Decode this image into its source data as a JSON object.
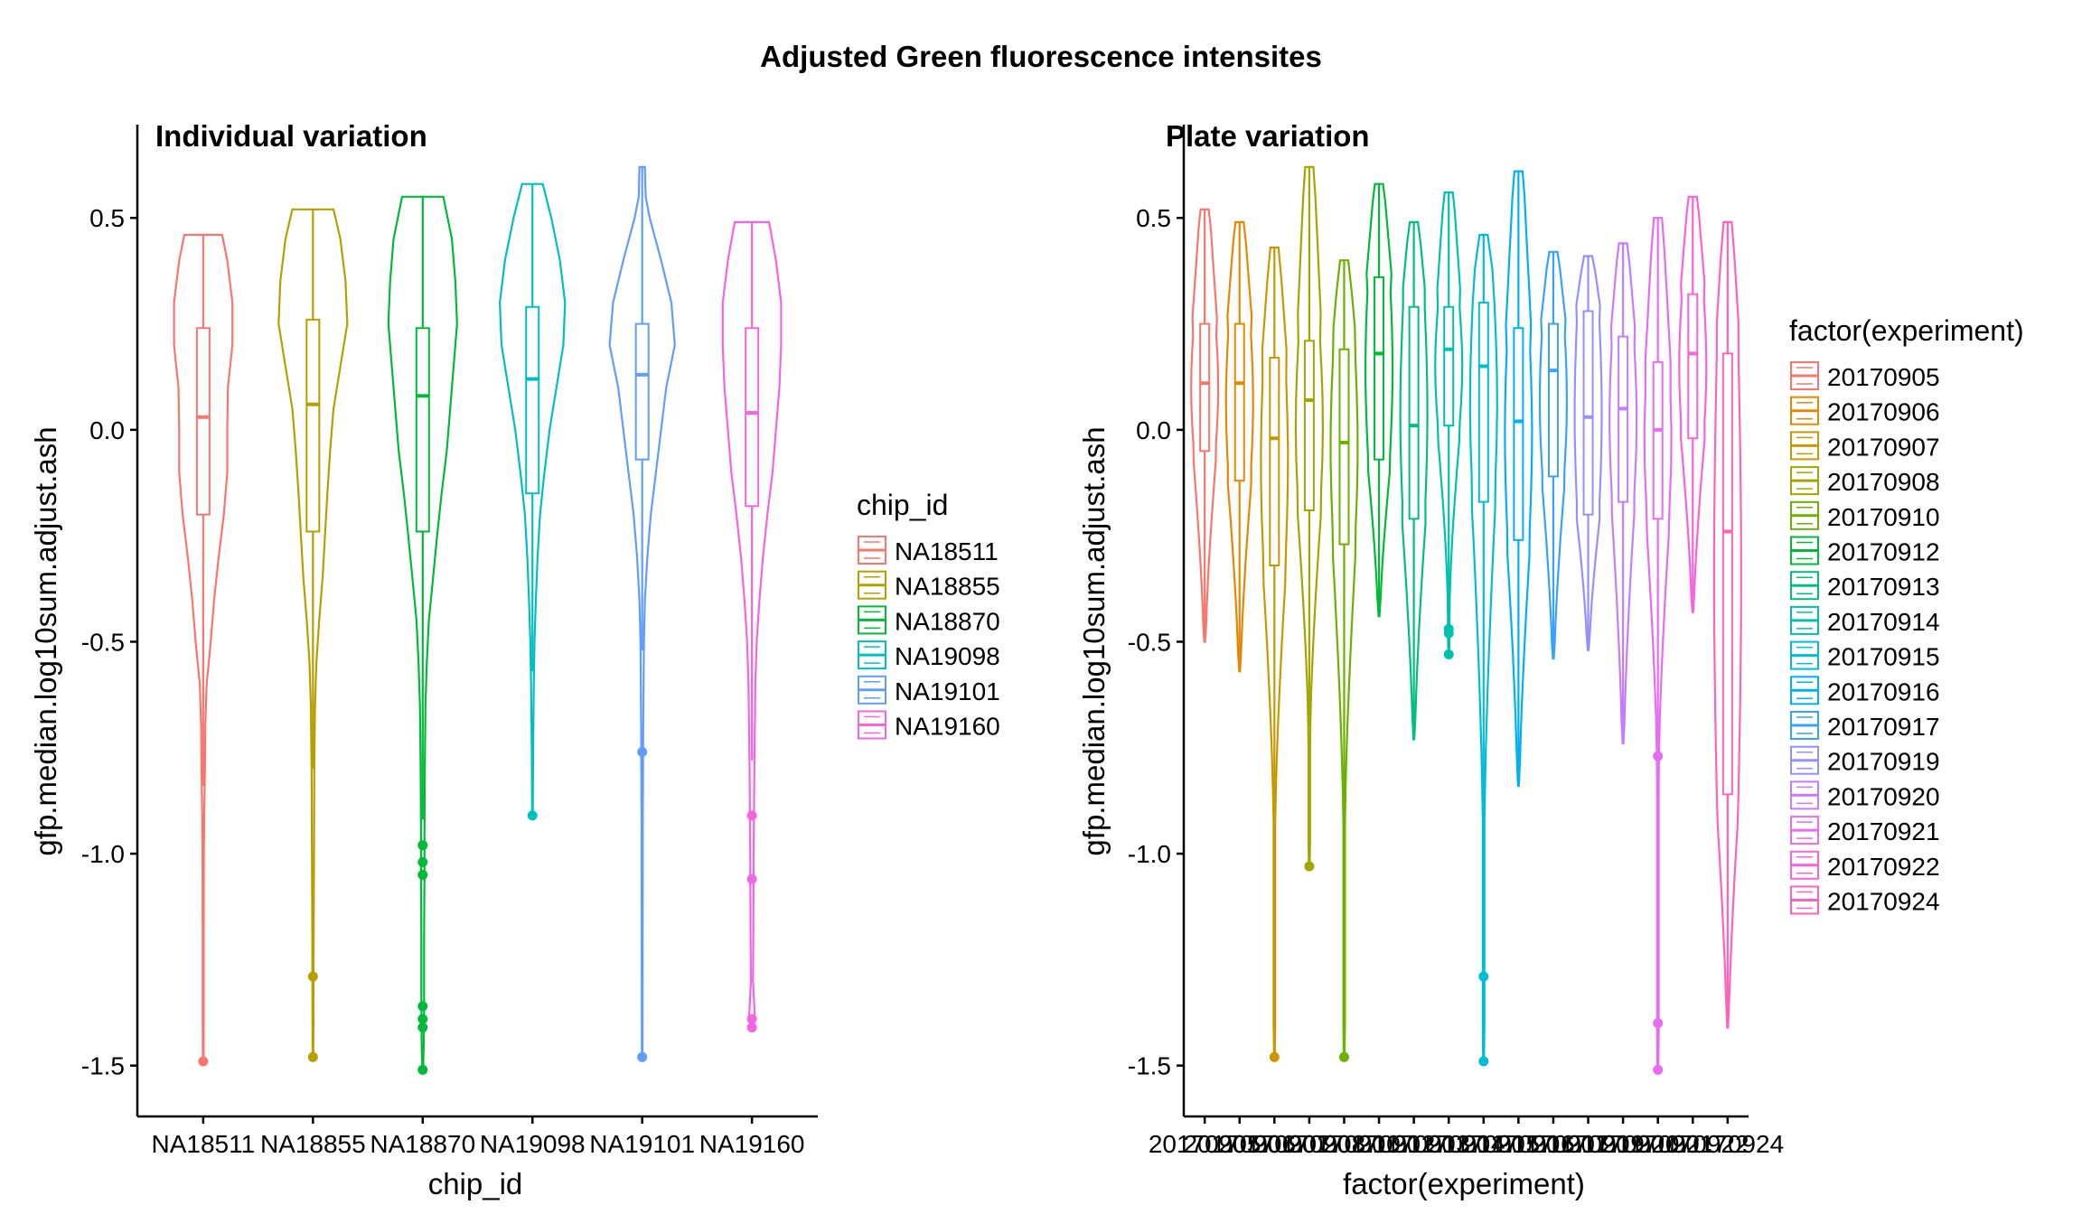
{
  "figure": {
    "title": "Adjusted Green fluorescence intensites"
  },
  "chart_data": [
    {
      "type": "violin",
      "title": "Individual variation",
      "xlabel": "chip_id",
      "ylabel": "gfp.median.log10sum.adjust.ash",
      "ylim": [
        -1.62,
        0.72
      ],
      "yticks": [
        0.5,
        0.0,
        -0.5,
        -1.0,
        -1.5
      ],
      "ytick_labels": [
        "0.5",
        "0.0",
        "-0.5",
        "-1.0",
        "-1.5"
      ],
      "grid": false,
      "legend": {
        "title": "chip_id",
        "position": "right"
      },
      "categories": [
        "NA18511",
        "NA18855",
        "NA18870",
        "NA19098",
        "NA19101",
        "NA19160"
      ],
      "series": [
        {
          "name": "NA18511",
          "color": "#F8766D",
          "min": -1.49,
          "max": 0.46,
          "q1": -0.2,
          "median": 0.03,
          "q3": 0.24,
          "whisker_low": -0.84,
          "whisker_high": 0.46,
          "profile": [
            [
              0.46,
              0.55
            ],
            [
              0.4,
              0.7
            ],
            [
              0.3,
              0.85
            ],
            [
              0.2,
              0.85
            ],
            [
              0.1,
              0.72
            ],
            [
              0.0,
              0.7
            ],
            [
              -0.1,
              0.7
            ],
            [
              -0.2,
              0.6
            ],
            [
              -0.3,
              0.45
            ],
            [
              -0.4,
              0.32
            ],
            [
              -0.5,
              0.22
            ],
            [
              -0.6,
              0.1
            ],
            [
              -0.7,
              0.06
            ],
            [
              -0.8,
              0.05
            ],
            [
              -0.9,
              0.03
            ],
            [
              -1.0,
              0.02
            ],
            [
              -1.2,
              0.015
            ],
            [
              -1.4,
              0.015
            ],
            [
              -1.49,
              0.01
            ]
          ],
          "outliers": [
            -1.49
          ]
        },
        {
          "name": "NA18855",
          "color": "#B79F00",
          "min": -1.48,
          "max": 0.52,
          "q1": -0.24,
          "median": 0.06,
          "q3": 0.26,
          "whisker_low": -0.8,
          "whisker_high": 0.52,
          "profile": [
            [
              0.52,
              0.6
            ],
            [
              0.45,
              0.8
            ],
            [
              0.35,
              0.95
            ],
            [
              0.25,
              1.0
            ],
            [
              0.15,
              0.8
            ],
            [
              0.05,
              0.6
            ],
            [
              -0.05,
              0.5
            ],
            [
              -0.15,
              0.42
            ],
            [
              -0.25,
              0.35
            ],
            [
              -0.35,
              0.28
            ],
            [
              -0.45,
              0.18
            ],
            [
              -0.55,
              0.1
            ],
            [
              -0.65,
              0.06
            ],
            [
              -0.8,
              0.04
            ],
            [
              -1.0,
              0.03
            ],
            [
              -1.2,
              0.02
            ],
            [
              -1.4,
              0.015
            ],
            [
              -1.48,
              0.01
            ]
          ],
          "outliers": [
            -1.29,
            -1.48
          ]
        },
        {
          "name": "NA18870",
          "color": "#00BA38",
          "min": -1.51,
          "max": 0.55,
          "q1": -0.24,
          "median": 0.08,
          "q3": 0.24,
          "whisker_low": -0.92,
          "whisker_high": 0.55,
          "profile": [
            [
              0.55,
              0.6
            ],
            [
              0.45,
              0.85
            ],
            [
              0.35,
              0.95
            ],
            [
              0.25,
              1.0
            ],
            [
              0.15,
              0.9
            ],
            [
              0.05,
              0.8
            ],
            [
              -0.05,
              0.7
            ],
            [
              -0.15,
              0.55
            ],
            [
              -0.25,
              0.42
            ],
            [
              -0.35,
              0.3
            ],
            [
              -0.45,
              0.18
            ],
            [
              -0.55,
              0.12
            ],
            [
              -0.65,
              0.08
            ],
            [
              -0.8,
              0.06
            ],
            [
              -0.95,
              0.05
            ],
            [
              -1.05,
              0.05
            ],
            [
              -1.2,
              0.04
            ],
            [
              -1.35,
              0.04
            ],
            [
              -1.45,
              0.03
            ],
            [
              -1.51,
              0.01
            ]
          ],
          "outliers": [
            -0.98,
            -1.02,
            -1.05,
            -1.36,
            -1.39,
            -1.41,
            -1.51
          ]
        },
        {
          "name": "NA19098",
          "color": "#00BFC4",
          "min": -0.91,
          "max": 0.58,
          "q1": -0.15,
          "median": 0.12,
          "q3": 0.29,
          "whisker_low": -0.57,
          "whisker_high": 0.58,
          "profile": [
            [
              0.58,
              0.3
            ],
            [
              0.5,
              0.55
            ],
            [
              0.4,
              0.8
            ],
            [
              0.3,
              0.95
            ],
            [
              0.2,
              0.9
            ],
            [
              0.1,
              0.7
            ],
            [
              0.0,
              0.5
            ],
            [
              -0.1,
              0.35
            ],
            [
              -0.2,
              0.22
            ],
            [
              -0.3,
              0.15
            ],
            [
              -0.4,
              0.1
            ],
            [
              -0.5,
              0.06
            ],
            [
              -0.6,
              0.04
            ],
            [
              -0.75,
              0.02
            ],
            [
              -0.91,
              0.01
            ]
          ],
          "outliers": [
            -0.91
          ]
        },
        {
          "name": "NA19101",
          "color": "#619CFF",
          "min": -1.48,
          "max": 0.62,
          "q1": -0.07,
          "median": 0.13,
          "q3": 0.25,
          "whisker_low": -0.52,
          "whisker_high": 0.62,
          "profile": [
            [
              0.62,
              0.08
            ],
            [
              0.55,
              0.1
            ],
            [
              0.5,
              0.22
            ],
            [
              0.4,
              0.55
            ],
            [
              0.3,
              0.85
            ],
            [
              0.2,
              0.95
            ],
            [
              0.1,
              0.7
            ],
            [
              0.0,
              0.55
            ],
            [
              -0.1,
              0.4
            ],
            [
              -0.2,
              0.25
            ],
            [
              -0.3,
              0.15
            ],
            [
              -0.4,
              0.08
            ],
            [
              -0.5,
              0.05
            ],
            [
              -0.7,
              0.03
            ],
            [
              -0.9,
              0.02
            ],
            [
              -1.2,
              0.015
            ],
            [
              -1.48,
              0.01
            ]
          ],
          "outliers": [
            -0.76,
            -1.48
          ]
        },
        {
          "name": "NA19160",
          "color": "#F564E3",
          "min": -1.41,
          "max": 0.49,
          "q1": -0.18,
          "median": 0.04,
          "q3": 0.24,
          "whisker_low": -0.78,
          "whisker_high": 0.49,
          "profile": [
            [
              0.49,
              0.5
            ],
            [
              0.4,
              0.7
            ],
            [
              0.3,
              0.85
            ],
            [
              0.2,
              0.85
            ],
            [
              0.1,
              0.8
            ],
            [
              0.0,
              0.7
            ],
            [
              -0.1,
              0.6
            ],
            [
              -0.2,
              0.45
            ],
            [
              -0.3,
              0.32
            ],
            [
              -0.4,
              0.22
            ],
            [
              -0.5,
              0.14
            ],
            [
              -0.6,
              0.1
            ],
            [
              -0.8,
              0.07
            ],
            [
              -1.0,
              0.05
            ],
            [
              -1.2,
              0.04
            ],
            [
              -1.3,
              0.03
            ],
            [
              -1.38,
              0.08
            ],
            [
              -1.41,
              0.03
            ]
          ],
          "outliers": [
            -0.91,
            -1.06,
            -1.39,
            -1.41
          ]
        }
      ]
    },
    {
      "type": "violin",
      "title": "Plate variation",
      "xlabel": "factor(experiment)",
      "ylabel": "gfp.median.log10sum.adjust.ash",
      "ylim": [
        -1.62,
        0.72
      ],
      "yticks": [
        0.5,
        0.0,
        -0.5,
        -1.0,
        -1.5
      ],
      "ytick_labels": [
        "0.5",
        "0.0",
        "-0.5",
        "-1.0",
        "-1.5"
      ],
      "grid": false,
      "legend": {
        "title": "factor(experiment)",
        "position": "right"
      },
      "categories": [
        "20170905",
        "20170906",
        "20170907",
        "20170908",
        "20170910",
        "20170912",
        "20170913",
        "20170914",
        "20170915",
        "20170916",
        "20170917",
        "20170919",
        "20170920",
        "20170921",
        "20170922",
        "20170924"
      ],
      "series": [
        {
          "name": "20170905",
          "color": "#F8766D",
          "min": -0.5,
          "max": 0.52,
          "q1": -0.05,
          "median": 0.11,
          "q3": 0.25,
          "whisker_low": -0.5,
          "whisker_high": 0.52,
          "outliers": []
        },
        {
          "name": "20170906",
          "color": "#E58700",
          "min": -0.57,
          "max": 0.49,
          "q1": -0.12,
          "median": 0.11,
          "q3": 0.25,
          "whisker_low": -0.57,
          "whisker_high": 0.49,
          "outliers": []
        },
        {
          "name": "20170907",
          "color": "#C99800",
          "min": -1.48,
          "max": 0.43,
          "q1": -0.32,
          "median": -0.02,
          "q3": 0.17,
          "whisker_low": -0.9,
          "whisker_high": 0.43,
          "outliers": [
            -1.48
          ]
        },
        {
          "name": "20170908",
          "color": "#A3A500",
          "min": -1.03,
          "max": 0.62,
          "q1": -0.19,
          "median": 0.07,
          "q3": 0.21,
          "whisker_low": -0.7,
          "whisker_high": 0.62,
          "outliers": [
            -1.03
          ]
        },
        {
          "name": "20170910",
          "color": "#6BB100",
          "min": -1.48,
          "max": 0.4,
          "q1": -0.27,
          "median": -0.03,
          "q3": 0.19,
          "whisker_low": -0.9,
          "whisker_high": 0.4,
          "outliers": [
            -1.48
          ]
        },
        {
          "name": "20170912",
          "color": "#00BA38",
          "min": -0.44,
          "max": 0.58,
          "q1": -0.07,
          "median": 0.18,
          "q3": 0.36,
          "whisker_low": -0.44,
          "whisker_high": 0.58,
          "outliers": []
        },
        {
          "name": "20170913",
          "color": "#00BF7D",
          "min": -0.73,
          "max": 0.49,
          "q1": -0.21,
          "median": 0.01,
          "q3": 0.29,
          "whisker_low": -0.73,
          "whisker_high": 0.49,
          "outliers": []
        },
        {
          "name": "20170914",
          "color": "#00C0AF",
          "min": -0.53,
          "max": 0.56,
          "q1": 0.01,
          "median": 0.19,
          "q3": 0.29,
          "whisker_low": -0.4,
          "whisker_high": 0.56,
          "outliers": [
            -0.47,
            -0.48,
            -0.53
          ]
        },
        {
          "name": "20170915",
          "color": "#00BCD8",
          "min": -1.49,
          "max": 0.46,
          "q1": -0.17,
          "median": 0.15,
          "q3": 0.3,
          "whisker_low": -0.9,
          "whisker_high": 0.46,
          "outliers": [
            -1.29,
            -1.49
          ]
        },
        {
          "name": "20170916",
          "color": "#00B0F6",
          "min": -0.84,
          "max": 0.61,
          "q1": -0.26,
          "median": 0.02,
          "q3": 0.24,
          "whisker_low": -0.84,
          "whisker_high": 0.61,
          "outliers": []
        },
        {
          "name": "20170917",
          "color": "#35A2FF",
          "min": -0.54,
          "max": 0.42,
          "q1": -0.11,
          "median": 0.14,
          "q3": 0.25,
          "whisker_low": -0.54,
          "whisker_high": 0.42,
          "outliers": []
        },
        {
          "name": "20170919",
          "color": "#9590FF",
          "min": -0.52,
          "max": 0.41,
          "q1": -0.2,
          "median": 0.03,
          "q3": 0.28,
          "whisker_low": -0.52,
          "whisker_high": 0.41,
          "outliers": []
        },
        {
          "name": "20170920",
          "color": "#C77CFF",
          "min": -0.74,
          "max": 0.44,
          "q1": -0.17,
          "median": 0.05,
          "q3": 0.22,
          "whisker_low": -0.74,
          "whisker_high": 0.44,
          "outliers": []
        },
        {
          "name": "20170921",
          "color": "#E76BF3",
          "min": -1.51,
          "max": 0.5,
          "q1": -0.21,
          "median": 0.0,
          "q3": 0.16,
          "whisker_low": -0.77,
          "whisker_high": 0.5,
          "outliers": [
            -0.77,
            -1.4,
            -1.51
          ]
        },
        {
          "name": "20170922",
          "color": "#FA62DB",
          "min": -0.43,
          "max": 0.55,
          "q1": -0.02,
          "median": 0.18,
          "q3": 0.32,
          "whisker_low": -0.43,
          "whisker_high": 0.55,
          "outliers": []
        },
        {
          "name": "20170924",
          "color": "#FF62BC",
          "min": -1.41,
          "max": 0.49,
          "q1": -0.86,
          "median": -0.24,
          "q3": 0.18,
          "whisker_low": -1.41,
          "whisker_high": 0.49,
          "outliers": []
        }
      ]
    }
  ]
}
